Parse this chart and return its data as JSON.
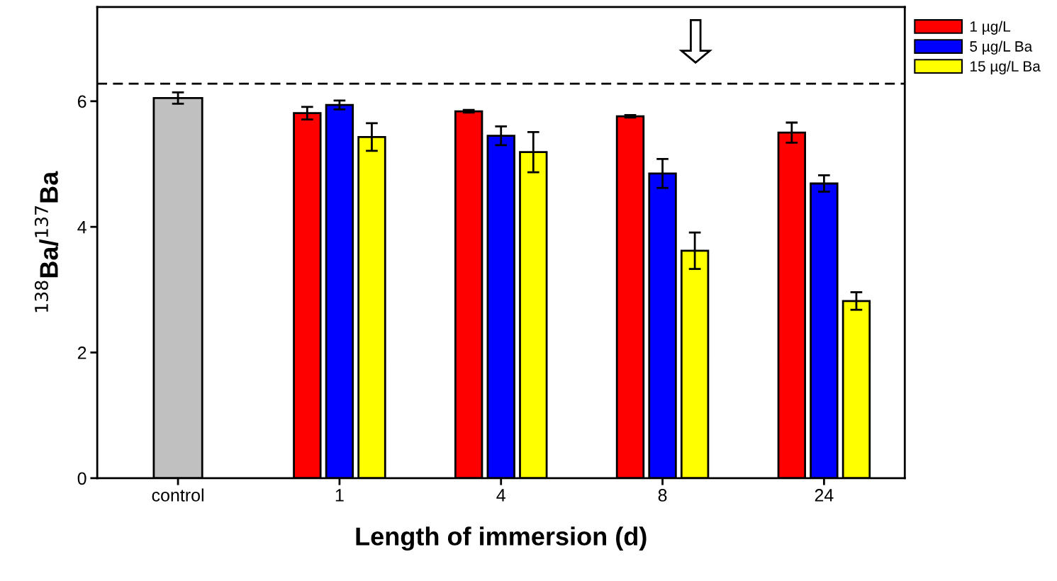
{
  "chart_data": {
    "type": "bar",
    "xlabel": "Length of immersion (d)",
    "ylabel": "$^{138}$Ba/$^{137}$Ba",
    "categories": [
      "control",
      "1",
      "4",
      "8",
      "24"
    ],
    "series": [
      {
        "color": "#c0c0c0",
        "values": [
          6.05,
          null,
          null,
          null,
          null
        ],
        "errors": [
          0.09,
          null,
          null,
          null,
          null
        ]
      },
      {
        "name": "1 µg/L",
        "color": "#ff0000",
        "values": [
          null,
          5.81,
          5.84,
          5.76,
          5.5
        ],
        "errors": [
          null,
          0.1,
          0.02,
          0.02,
          0.16
        ]
      },
      {
        "name": "5 µg/L Ba",
        "color": "#0000ff",
        "values": [
          null,
          5.94,
          5.45,
          4.85,
          4.69
        ],
        "errors": [
          null,
          0.07,
          0.15,
          0.23,
          0.13
        ]
      },
      {
        "name": "15 µg/L Ba",
        "color": "#ffff00",
        "values": [
          null,
          5.43,
          5.19,
          3.62,
          2.82
        ],
        "errors": [
          null,
          0.22,
          0.32,
          0.29,
          0.14
        ]
      }
    ],
    "ylim": [
      0,
      7.5
    ],
    "yticks": [
      0,
      2,
      4,
      6
    ],
    "grid": false,
    "legend": "top right",
    "ref_lines": [
      {
        "axis": "y",
        "value": 6.28,
        "color": "#000000",
        "line_style": "dashed"
      }
    ]
  }
}
